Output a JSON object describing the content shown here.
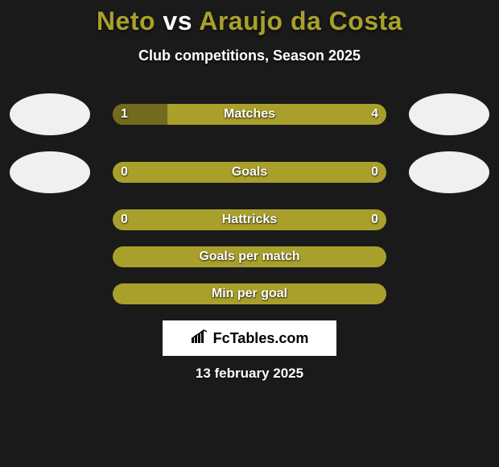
{
  "title": {
    "player1": "Neto",
    "vs": "vs",
    "player2": "Araujo da Costa"
  },
  "subtitle": "Club competitions, Season 2025",
  "colors": {
    "bar_bg": "#a9a02b",
    "bar_fill": "#716a1f",
    "page_bg": "#1a1a1a",
    "text": "#ffffff",
    "logo_bg": "#ffffff",
    "logo_text": "#000000"
  },
  "rows": [
    {
      "label": "Matches",
      "left": "1",
      "right": "4",
      "fill_pct": 20,
      "show_avatars": true
    },
    {
      "label": "Goals",
      "left": "0",
      "right": "0",
      "fill_pct": 0,
      "show_avatars": true
    },
    {
      "label": "Hattricks",
      "left": "0",
      "right": "0",
      "fill_pct": 0,
      "show_avatars": false
    }
  ],
  "simple_rows": [
    {
      "label": "Goals per match"
    },
    {
      "label": "Min per goal"
    }
  ],
  "logo": {
    "text": "FcTables.com"
  },
  "date": "13 february 2025"
}
